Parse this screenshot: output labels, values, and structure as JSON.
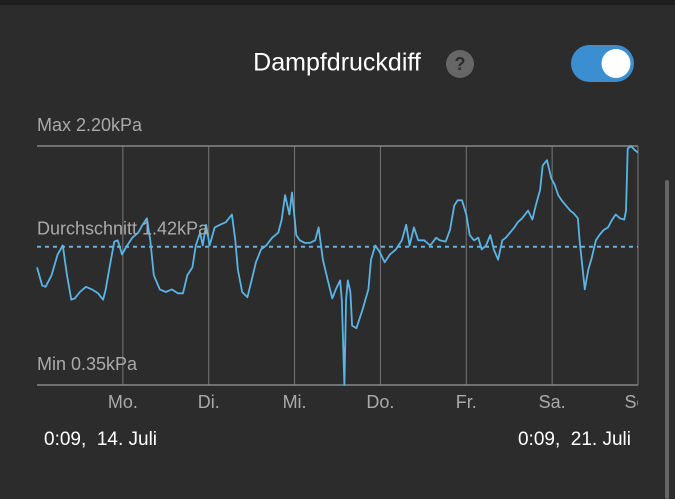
{
  "chart_data": {
    "type": "line",
    "title": "Dampfdruckdiff",
    "help_icon": "?",
    "color": "#5ab4e6",
    "x": [
      0.0,
      0.06,
      0.1,
      0.17,
      0.24,
      0.3,
      0.35,
      0.4,
      0.44,
      0.5,
      0.57,
      0.64,
      0.71,
      0.77,
      0.8,
      0.85,
      0.9,
      0.94,
      0.99,
      1.05,
      1.11,
      1.18,
      1.23,
      1.28,
      1.32,
      1.36,
      1.43,
      1.5,
      1.57,
      1.64,
      1.7,
      1.75,
      1.81,
      1.85,
      1.9,
      1.93,
      1.97,
      2.01,
      2.07,
      2.13,
      2.2,
      2.27,
      2.31,
      2.34,
      2.39,
      2.45,
      2.5,
      2.55,
      2.61,
      2.67,
      2.74,
      2.81,
      2.85,
      2.89,
      2.94,
      2.97,
      3.02,
      3.06,
      3.12,
      3.18,
      3.24,
      3.28,
      3.33,
      3.39,
      3.44,
      3.48,
      3.53,
      3.55,
      3.58,
      3.6,
      3.62,
      3.65,
      3.67,
      3.72,
      3.79,
      3.86,
      3.89,
      3.94,
      3.99,
      4.05,
      4.11,
      4.18,
      4.25,
      4.3,
      4.34,
      4.39,
      4.44,
      4.51,
      4.58,
      4.65,
      4.69,
      4.76,
      4.81,
      4.86,
      4.9,
      4.95,
      5.0,
      5.04,
      5.09,
      5.14,
      5.18,
      5.23,
      5.28,
      5.32,
      5.37,
      5.42,
      5.46,
      5.51,
      5.56,
      5.6,
      5.65,
      5.72,
      5.77,
      5.81,
      5.86,
      5.89,
      5.94,
      5.99,
      6.03,
      6.07,
      6.11,
      6.16,
      6.21,
      6.25,
      6.3,
      6.32,
      6.35,
      6.38,
      6.42,
      6.46,
      6.51,
      6.55,
      6.6,
      6.65,
      6.7,
      6.74,
      6.79,
      6.84,
      6.86,
      6.88,
      6.92,
      6.96,
      7.0
    ],
    "values": [
      1.26,
      1.12,
      1.11,
      1.2,
      1.36,
      1.43,
      1.2,
      1.01,
      1.02,
      1.07,
      1.11,
      1.09,
      1.06,
      1.01,
      1.09,
      1.28,
      1.46,
      1.47,
      1.36,
      1.43,
      1.49,
      1.53,
      1.59,
      1.64,
      1.47,
      1.2,
      1.09,
      1.07,
      1.09,
      1.06,
      1.06,
      1.2,
      1.26,
      1.43,
      1.53,
      1.43,
      1.59,
      1.43,
      1.57,
      1.59,
      1.61,
      1.67,
      1.47,
      1.24,
      1.07,
      1.03,
      1.16,
      1.3,
      1.4,
      1.43,
      1.49,
      1.53,
      1.63,
      1.82,
      1.67,
      1.84,
      1.51,
      1.47,
      1.45,
      1.45,
      1.47,
      1.57,
      1.32,
      1.15,
      1.02,
      1.09,
      1.16,
      1.01,
      0.35,
      1.01,
      1.16,
      1.07,
      0.81,
      0.79,
      0.93,
      1.09,
      1.32,
      1.43,
      1.38,
      1.3,
      1.36,
      1.4,
      1.47,
      1.59,
      1.43,
      1.57,
      1.47,
      1.47,
      1.43,
      1.49,
      1.47,
      1.46,
      1.55,
      1.74,
      1.78,
      1.78,
      1.67,
      1.51,
      1.47,
      1.49,
      1.4,
      1.43,
      1.51,
      1.4,
      1.32,
      1.47,
      1.49,
      1.53,
      1.57,
      1.61,
      1.64,
      1.7,
      1.63,
      1.74,
      1.86,
      2.05,
      2.09,
      1.95,
      1.9,
      1.82,
      1.78,
      1.74,
      1.7,
      1.68,
      1.64,
      1.47,
      1.28,
      1.09,
      1.24,
      1.33,
      1.47,
      1.51,
      1.55,
      1.57,
      1.63,
      1.67,
      1.64,
      1.63,
      1.7,
      2.18,
      2.2,
      2.17,
      2.15
    ],
    "xlim": [
      0,
      7
    ],
    "xticks": [
      {
        "value": 1,
        "label": "Mo."
      },
      {
        "value": 2,
        "label": "Di."
      },
      {
        "value": 3,
        "label": "Mi."
      },
      {
        "value": 4,
        "label": "Do."
      },
      {
        "value": 5,
        "label": "Fr."
      },
      {
        "value": 6,
        "label": "Sa."
      },
      {
        "value": 7,
        "label": "So."
      }
    ],
    "ylim": [
      0.35,
      2.2
    ],
    "yticks": [
      {
        "value": 2.2,
        "label": "Max 2.20kPa"
      },
      {
        "value": 0.35,
        "label": "Min 0.35kPa"
      }
    ],
    "average": {
      "value": 1.42,
      "label": "Durchschnitt 1.42kPa"
    },
    "start_label": "0:09,  14. Juli",
    "end_label": "0:09,  21. Juli"
  }
}
